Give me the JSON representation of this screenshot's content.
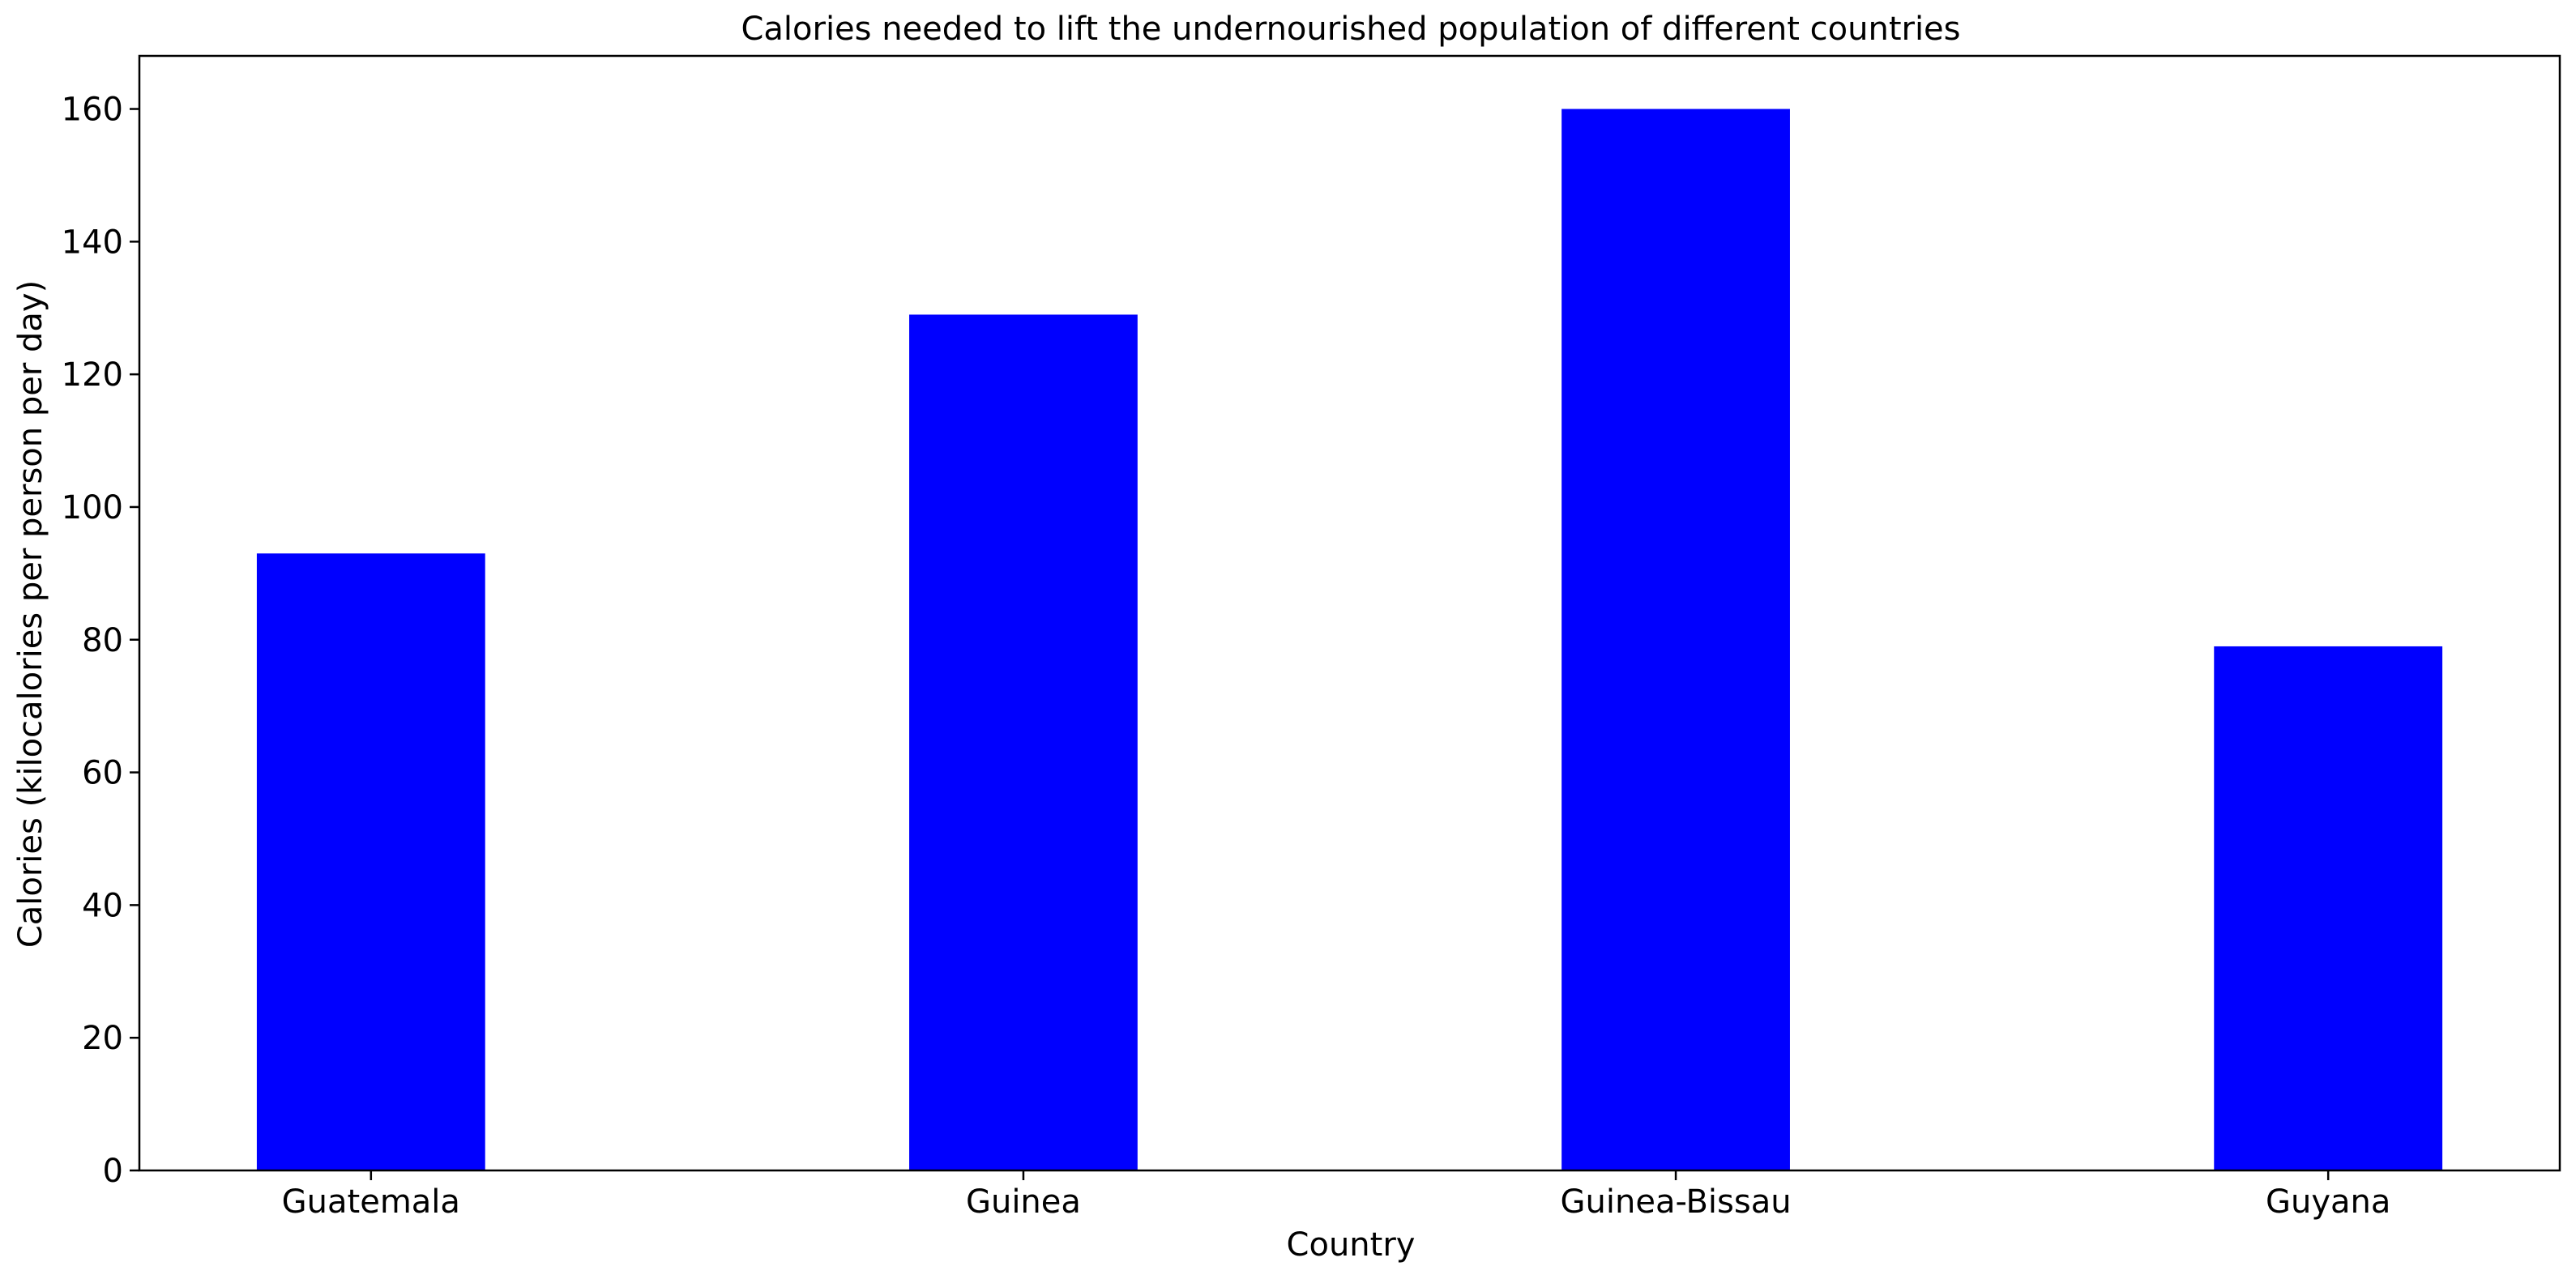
{
  "chart_data": {
    "type": "bar",
    "title": "Calories needed to lift the undernourished population of different countries",
    "xlabel": "Country",
    "ylabel": "Calories (kilocalories per person per day)",
    "categories": [
      "Guatemala",
      "Guinea",
      "Guinea-Bissau",
      "Guyana"
    ],
    "values": [
      93,
      129,
      160,
      79
    ],
    "ylim": [
      0,
      168
    ],
    "yticks": [
      0,
      20,
      40,
      60,
      80,
      100,
      120,
      140,
      160
    ],
    "grid": false,
    "legend": "none",
    "bar_color": "#0000ff"
  }
}
